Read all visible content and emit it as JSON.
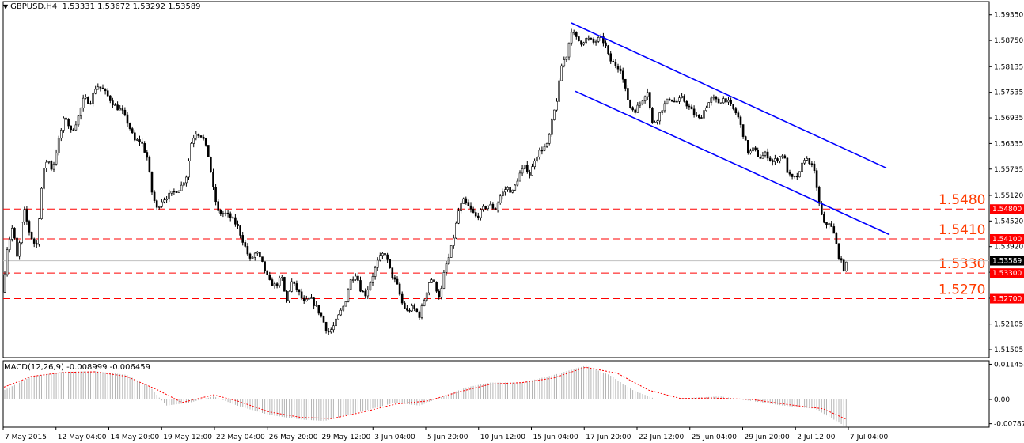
{
  "header": {
    "symbol": "GBPUSD,H4",
    "ohlc": "1.53331 1.53672 1.53292 1.53589"
  },
  "macd_header": {
    "label": "MACD(12,26,9) -0.008999 -0.006459"
  },
  "colors": {
    "background": "#ffffff",
    "candle": "#000000",
    "level_line": "#ff0000",
    "level_text": "#ff3b00",
    "channel": "#0000ff",
    "macd_hist": "#b4b4b4",
    "macd_signal": "#ff0000",
    "axis": "#000000"
  },
  "chart_data": [
    {
      "type": "candlestick",
      "symbol": "GBPUSD",
      "timeframe": "H4",
      "ylim": [
        1.5132,
        1.5966
      ],
      "y_ticks": [
        "1.59350",
        "1.58750",
        "1.58135",
        "1.57535",
        "1.56935",
        "1.56335",
        "1.55735",
        "1.55120",
        "1.54520",
        "1.53920",
        "1.53320",
        "1.52710",
        "1.52105",
        "1.51505"
      ],
      "x_tick_labels": [
        "7 May 2015",
        "12 May 04:00",
        "14 May 20:00",
        "19 May 12:00",
        "22 May 04:00",
        "26 May 20:00",
        "29 May 12:00",
        "3 Jun 04:00",
        "5 Jun 20:00",
        "10 Jun 12:00",
        "15 Jun 04:00",
        "17 Jun 20:00",
        "22 Jun 12:00",
        "25 Jun 04:00",
        "29 Jun 20:00",
        "2 Jul 12:00",
        "7 Jul 04:00"
      ],
      "approx_close_path": [
        [
          0,
          1.519
        ],
        [
          8,
          1.538
        ],
        [
          16,
          1.544
        ],
        [
          22,
          1.536
        ],
        [
          30,
          1.548
        ],
        [
          38,
          1.542
        ],
        [
          46,
          1.539
        ],
        [
          54,
          1.556
        ],
        [
          60,
          1.56
        ],
        [
          66,
          1.557
        ],
        [
          74,
          1.564
        ],
        [
          82,
          1.57
        ],
        [
          90,
          1.566
        ],
        [
          98,
          1.569
        ],
        [
          106,
          1.574
        ],
        [
          114,
          1.573
        ],
        [
          122,
          1.577
        ],
        [
          130,
          1.576
        ],
        [
          138,
          1.574
        ],
        [
          146,
          1.572
        ],
        [
          154,
          1.571
        ],
        [
          162,
          1.568
        ],
        [
          170,
          1.564
        ],
        [
          178,
          1.564
        ],
        [
          186,
          1.56
        ],
        [
          192,
          1.552
        ],
        [
          198,
          1.548
        ],
        [
          204,
          1.55
        ],
        [
          212,
          1.551
        ],
        [
          220,
          1.552
        ],
        [
          228,
          1.553
        ],
        [
          236,
          1.556
        ],
        [
          242,
          1.564
        ],
        [
          248,
          1.566
        ],
        [
          256,
          1.565
        ],
        [
          264,
          1.56
        ],
        [
          270,
          1.552
        ],
        [
          276,
          1.547
        ],
        [
          284,
          1.547
        ],
        [
          292,
          1.546
        ],
        [
          300,
          1.544
        ],
        [
          308,
          1.54
        ],
        [
          316,
          1.536
        ],
        [
          324,
          1.538
        ],
        [
          332,
          1.535
        ],
        [
          340,
          1.531
        ],
        [
          348,
          1.53
        ],
        [
          356,
          1.532
        ],
        [
          362,
          1.526
        ],
        [
          368,
          1.531
        ],
        [
          376,
          1.529
        ],
        [
          384,
          1.526
        ],
        [
          392,
          1.527
        ],
        [
          400,
          1.525
        ],
        [
          408,
          1.522
        ],
        [
          414,
          1.519
        ],
        [
          420,
          1.52
        ],
        [
          428,
          1.523
        ],
        [
          436,
          1.526
        ],
        [
          442,
          1.531
        ],
        [
          450,
          1.533
        ],
        [
          456,
          1.529
        ],
        [
          462,
          1.528
        ],
        [
          470,
          1.532
        ],
        [
          478,
          1.536
        ],
        [
          486,
          1.538
        ],
        [
          494,
          1.533
        ],
        [
          502,
          1.53
        ],
        [
          508,
          1.526
        ],
        [
          514,
          1.524
        ],
        [
          522,
          1.525
        ],
        [
          530,
          1.523
        ],
        [
          538,
          1.528
        ],
        [
          544,
          1.532
        ],
        [
          550,
          1.53
        ],
        [
          556,
          1.527
        ],
        [
          562,
          1.534
        ],
        [
          568,
          1.537
        ],
        [
          574,
          1.542
        ],
        [
          580,
          1.548
        ],
        [
          586,
          1.55
        ],
        [
          594,
          1.548
        ],
        [
          602,
          1.546
        ],
        [
          610,
          1.548
        ],
        [
          618,
          1.549
        ],
        [
          626,
          1.548
        ],
        [
          632,
          1.551
        ],
        [
          640,
          1.553
        ],
        [
          648,
          1.552
        ],
        [
          656,
          1.556
        ],
        [
          664,
          1.558
        ],
        [
          670,
          1.556
        ],
        [
          676,
          1.56
        ],
        [
          684,
          1.562
        ],
        [
          692,
          1.563
        ],
        [
          698,
          1.569
        ],
        [
          704,
          1.574
        ],
        [
          710,
          1.582
        ],
        [
          716,
          1.584
        ],
        [
          722,
          1.59
        ],
        [
          728,
          1.588
        ],
        [
          734,
          1.587
        ],
        [
          742,
          1.588
        ],
        [
          750,
          1.587
        ],
        [
          758,
          1.588
        ],
        [
          764,
          1.587
        ],
        [
          770,
          1.583
        ],
        [
          776,
          1.582
        ],
        [
          784,
          1.581
        ],
        [
          790,
          1.576
        ],
        [
          796,
          1.572
        ],
        [
          802,
          1.571
        ],
        [
          810,
          1.573
        ],
        [
          818,
          1.576
        ],
        [
          824,
          1.568
        ],
        [
          830,
          1.569
        ],
        [
          838,
          1.572
        ],
        [
          846,
          1.574
        ],
        [
          854,
          1.573
        ],
        [
          862,
          1.574
        ],
        [
          870,
          1.572
        ],
        [
          878,
          1.57
        ],
        [
          884,
          1.569
        ],
        [
          892,
          1.572
        ],
        [
          900,
          1.574
        ],
        [
          908,
          1.573
        ],
        [
          916,
          1.574
        ],
        [
          924,
          1.572
        ],
        [
          932,
          1.57
        ],
        [
          940,
          1.565
        ],
        [
          946,
          1.561
        ],
        [
          952,
          1.562
        ],
        [
          960,
          1.56
        ],
        [
          968,
          1.561
        ],
        [
          976,
          1.559
        ],
        [
          984,
          1.56
        ],
        [
          990,
          1.561
        ],
        [
          996,
          1.556
        ],
        [
          1002,
          1.555
        ],
        [
          1010,
          1.556
        ],
        [
          1016,
          1.56
        ],
        [
          1024,
          1.559
        ],
        [
          1030,
          1.556
        ],
        [
          1036,
          1.548
        ],
        [
          1042,
          1.544
        ],
        [
          1048,
          1.545
        ],
        [
          1054,
          1.542
        ],
        [
          1060,
          1.537
        ],
        [
          1066,
          1.534
        ],
        [
          1072,
          1.5359
        ]
      ],
      "last_price": "1.53589",
      "horizontal_levels": [
        {
          "value": 1.548,
          "label": "1.5480",
          "axis_tag": "1.54800"
        },
        {
          "value": 1.541,
          "label": "1.5410",
          "axis_tag": "1.54100"
        },
        {
          "value": 1.533,
          "label": "1.5330",
          "axis_tag": "1.53300"
        },
        {
          "value": 1.527,
          "label": "1.5270",
          "axis_tag": "1.52700"
        }
      ],
      "trend_channel": [
        {
          "name": "upper",
          "from": [
            722,
            1.5916
          ],
          "to": [
            1120,
            1.5576
          ]
        },
        {
          "name": "lower",
          "from": [
            727,
            1.5756
          ],
          "to": [
            1124,
            1.542
          ]
        }
      ]
    },
    {
      "type": "macd",
      "params": "12,26,9",
      "ylim": [
        -0.009,
        0.0126
      ],
      "y_ticks": [
        "0.011454",
        "0.00",
        "-0.007878"
      ],
      "approx_histogram": [
        [
          5,
          0.003
        ],
        [
          40,
          0.0075
        ],
        [
          80,
          0.009
        ],
        [
          120,
          0.0092
        ],
        [
          160,
          0.008
        ],
        [
          190,
          0.004
        ],
        [
          210,
          -0.002
        ],
        [
          240,
          -0.001
        ],
        [
          270,
          0.001
        ],
        [
          300,
          -0.002
        ],
        [
          340,
          -0.005
        ],
        [
          380,
          -0.0065
        ],
        [
          410,
          -0.007
        ],
        [
          440,
          -0.005
        ],
        [
          470,
          -0.003
        ],
        [
          500,
          -0.001
        ],
        [
          530,
          -0.002
        ],
        [
          560,
          0.001
        ],
        [
          590,
          0.004
        ],
        [
          620,
          0.0055
        ],
        [
          660,
          0.0055
        ],
        [
          700,
          0.008
        ],
        [
          740,
          0.011
        ],
        [
          770,
          0.008
        ],
        [
          800,
          0.003
        ],
        [
          830,
          0.0
        ],
        [
          870,
          0.0005
        ],
        [
          910,
          0.001
        ],
        [
          950,
          -0.0005
        ],
        [
          990,
          -0.002
        ],
        [
          1030,
          -0.003
        ],
        [
          1050,
          -0.006
        ],
        [
          1070,
          -0.009
        ]
      ],
      "approx_signal": [
        [
          5,
          0.004
        ],
        [
          40,
          0.0075
        ],
        [
          80,
          0.0088
        ],
        [
          120,
          0.009
        ],
        [
          160,
          0.0075
        ],
        [
          200,
          0.003
        ],
        [
          230,
          -0.001
        ],
        [
          270,
          0.0015
        ],
        [
          300,
          -0.0005
        ],
        [
          340,
          -0.004
        ],
        [
          380,
          -0.0058
        ],
        [
          420,
          -0.0062
        ],
        [
          460,
          -0.004
        ],
        [
          500,
          -0.0015
        ],
        [
          540,
          -0.0005
        ],
        [
          580,
          0.0025
        ],
        [
          620,
          0.005
        ],
        [
          660,
          0.0055
        ],
        [
          700,
          0.007
        ],
        [
          740,
          0.0105
        ],
        [
          780,
          0.0085
        ],
        [
          820,
          0.003
        ],
        [
          860,
          0.0003
        ],
        [
          900,
          0.0005
        ],
        [
          950,
          0.0
        ],
        [
          1000,
          -0.0018
        ],
        [
          1040,
          -0.003
        ],
        [
          1070,
          -0.0065
        ]
      ]
    }
  ]
}
